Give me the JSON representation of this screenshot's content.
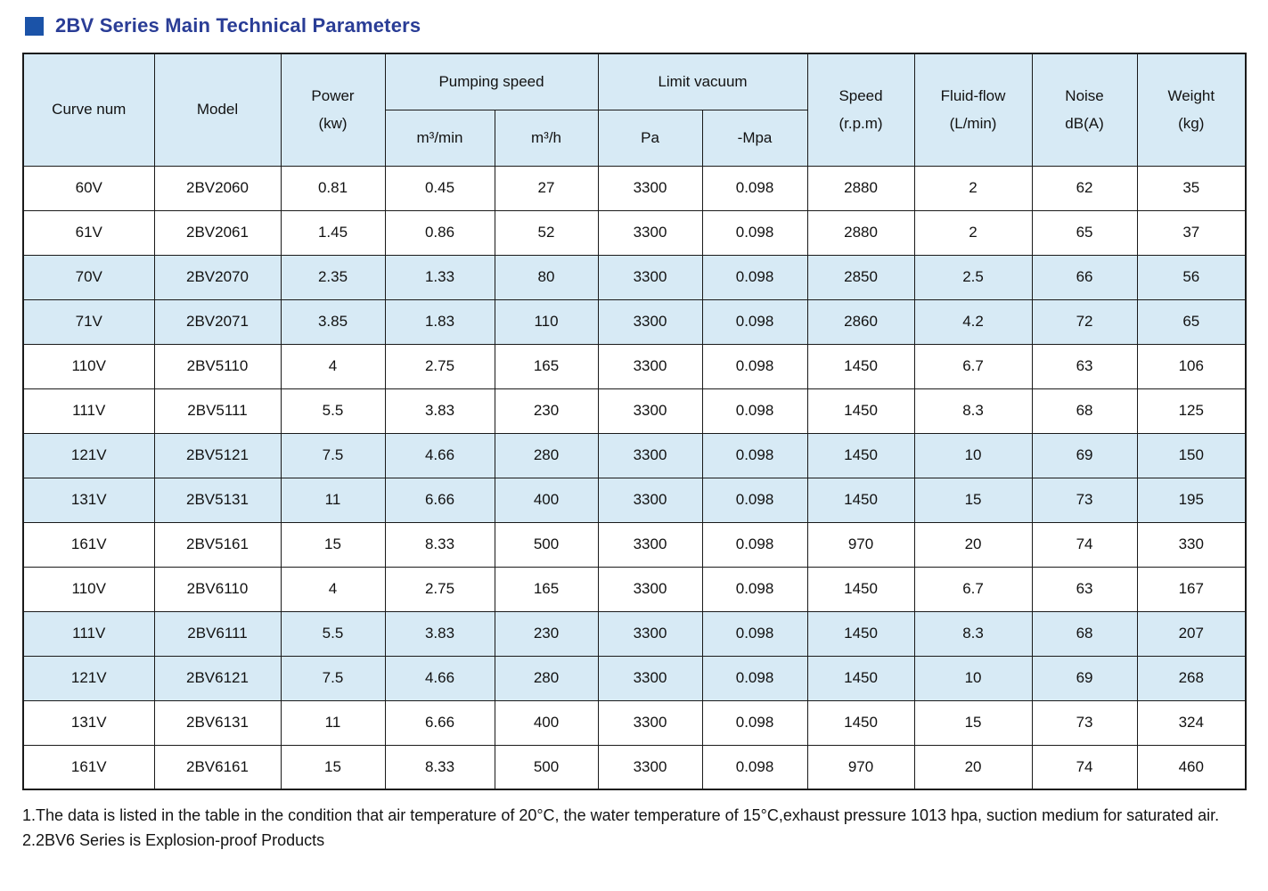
{
  "page": {
    "title": "2BV Series Main Technical Parameters"
  },
  "table": {
    "headers": {
      "curve_num": "Curve num",
      "model": "Model",
      "power_line1": "Power",
      "power_line2": "(kw)",
      "pumping_speed": "Pumping speed",
      "m3_min": "m³/min",
      "m3_h": "m³/h",
      "limit_vacuum": "Limit vacuum",
      "pa": "Pa",
      "mpa": "-Mpa",
      "speed_line1": "Speed",
      "speed_line2": "(r.p.m)",
      "fluid_line1": "Fluid-flow",
      "fluid_line2": "(L/min)",
      "noise_line1": "Noise",
      "noise_line2": "dB(A)",
      "weight_line1": "Weight",
      "weight_line2": "(kg)"
    },
    "rows": [
      [
        "60V",
        "2BV2060",
        "0.81",
        "0.45",
        "27",
        "3300",
        "0.098",
        "2880",
        "2",
        "62",
        "35"
      ],
      [
        "61V",
        "2BV2061",
        "1.45",
        "0.86",
        "52",
        "3300",
        "0.098",
        "2880",
        "2",
        "65",
        "37"
      ],
      [
        "70V",
        "2BV2070",
        "2.35",
        "1.33",
        "80",
        "3300",
        "0.098",
        "2850",
        "2.5",
        "66",
        "56"
      ],
      [
        "71V",
        "2BV2071",
        "3.85",
        "1.83",
        "110",
        "3300",
        "0.098",
        "2860",
        "4.2",
        "72",
        "65"
      ],
      [
        "110V",
        "2BV5110",
        "4",
        "2.75",
        "165",
        "3300",
        "0.098",
        "1450",
        "6.7",
        "63",
        "106"
      ],
      [
        "111V",
        "2BV5111",
        "5.5",
        "3.83",
        "230",
        "3300",
        "0.098",
        "1450",
        "8.3",
        "68",
        "125"
      ],
      [
        "121V",
        "2BV5121",
        "7.5",
        "4.66",
        "280",
        "3300",
        "0.098",
        "1450",
        "10",
        "69",
        "150"
      ],
      [
        "131V",
        "2BV5131",
        "11",
        "6.66",
        "400",
        "3300",
        "0.098",
        "1450",
        "15",
        "73",
        "195"
      ],
      [
        "161V",
        "2BV5161",
        "15",
        "8.33",
        "500",
        "3300",
        "0.098",
        "970",
        "20",
        "74",
        "330"
      ],
      [
        "110V",
        "2BV6110",
        "4",
        "2.75",
        "165",
        "3300",
        "0.098",
        "1450",
        "6.7",
        "63",
        "167"
      ],
      [
        "111V",
        "2BV6111",
        "5.5",
        "3.83",
        "230",
        "3300",
        "0.098",
        "1450",
        "8.3",
        "68",
        "207"
      ],
      [
        "121V",
        "2BV6121",
        "7.5",
        "4.66",
        "280",
        "3300",
        "0.098",
        "1450",
        "10",
        "69",
        "268"
      ],
      [
        "131V",
        "2BV6131",
        "11",
        "6.66",
        "400",
        "3300",
        "0.098",
        "1450",
        "15",
        "73",
        "324"
      ],
      [
        "161V",
        "2BV6161",
        "15",
        "8.33",
        "500",
        "3300",
        "0.098",
        "970",
        "20",
        "74",
        "460"
      ]
    ]
  },
  "notes": {
    "note1": "1.The data is listed in the table in the condition that air temperature of 20°C, the water temperature of 15°C,exhaust pressure 1013 hpa, suction medium for saturated air.",
    "note2": "2.2BV6 Series is Explosion-proof Products"
  },
  "colors": {
    "title_text": "#2a3d96",
    "title_bullet": "#1b53a8",
    "header_bg": "#d7eaf5",
    "stripe_bg": "#d7eaf5",
    "border": "#1a1a1a"
  }
}
